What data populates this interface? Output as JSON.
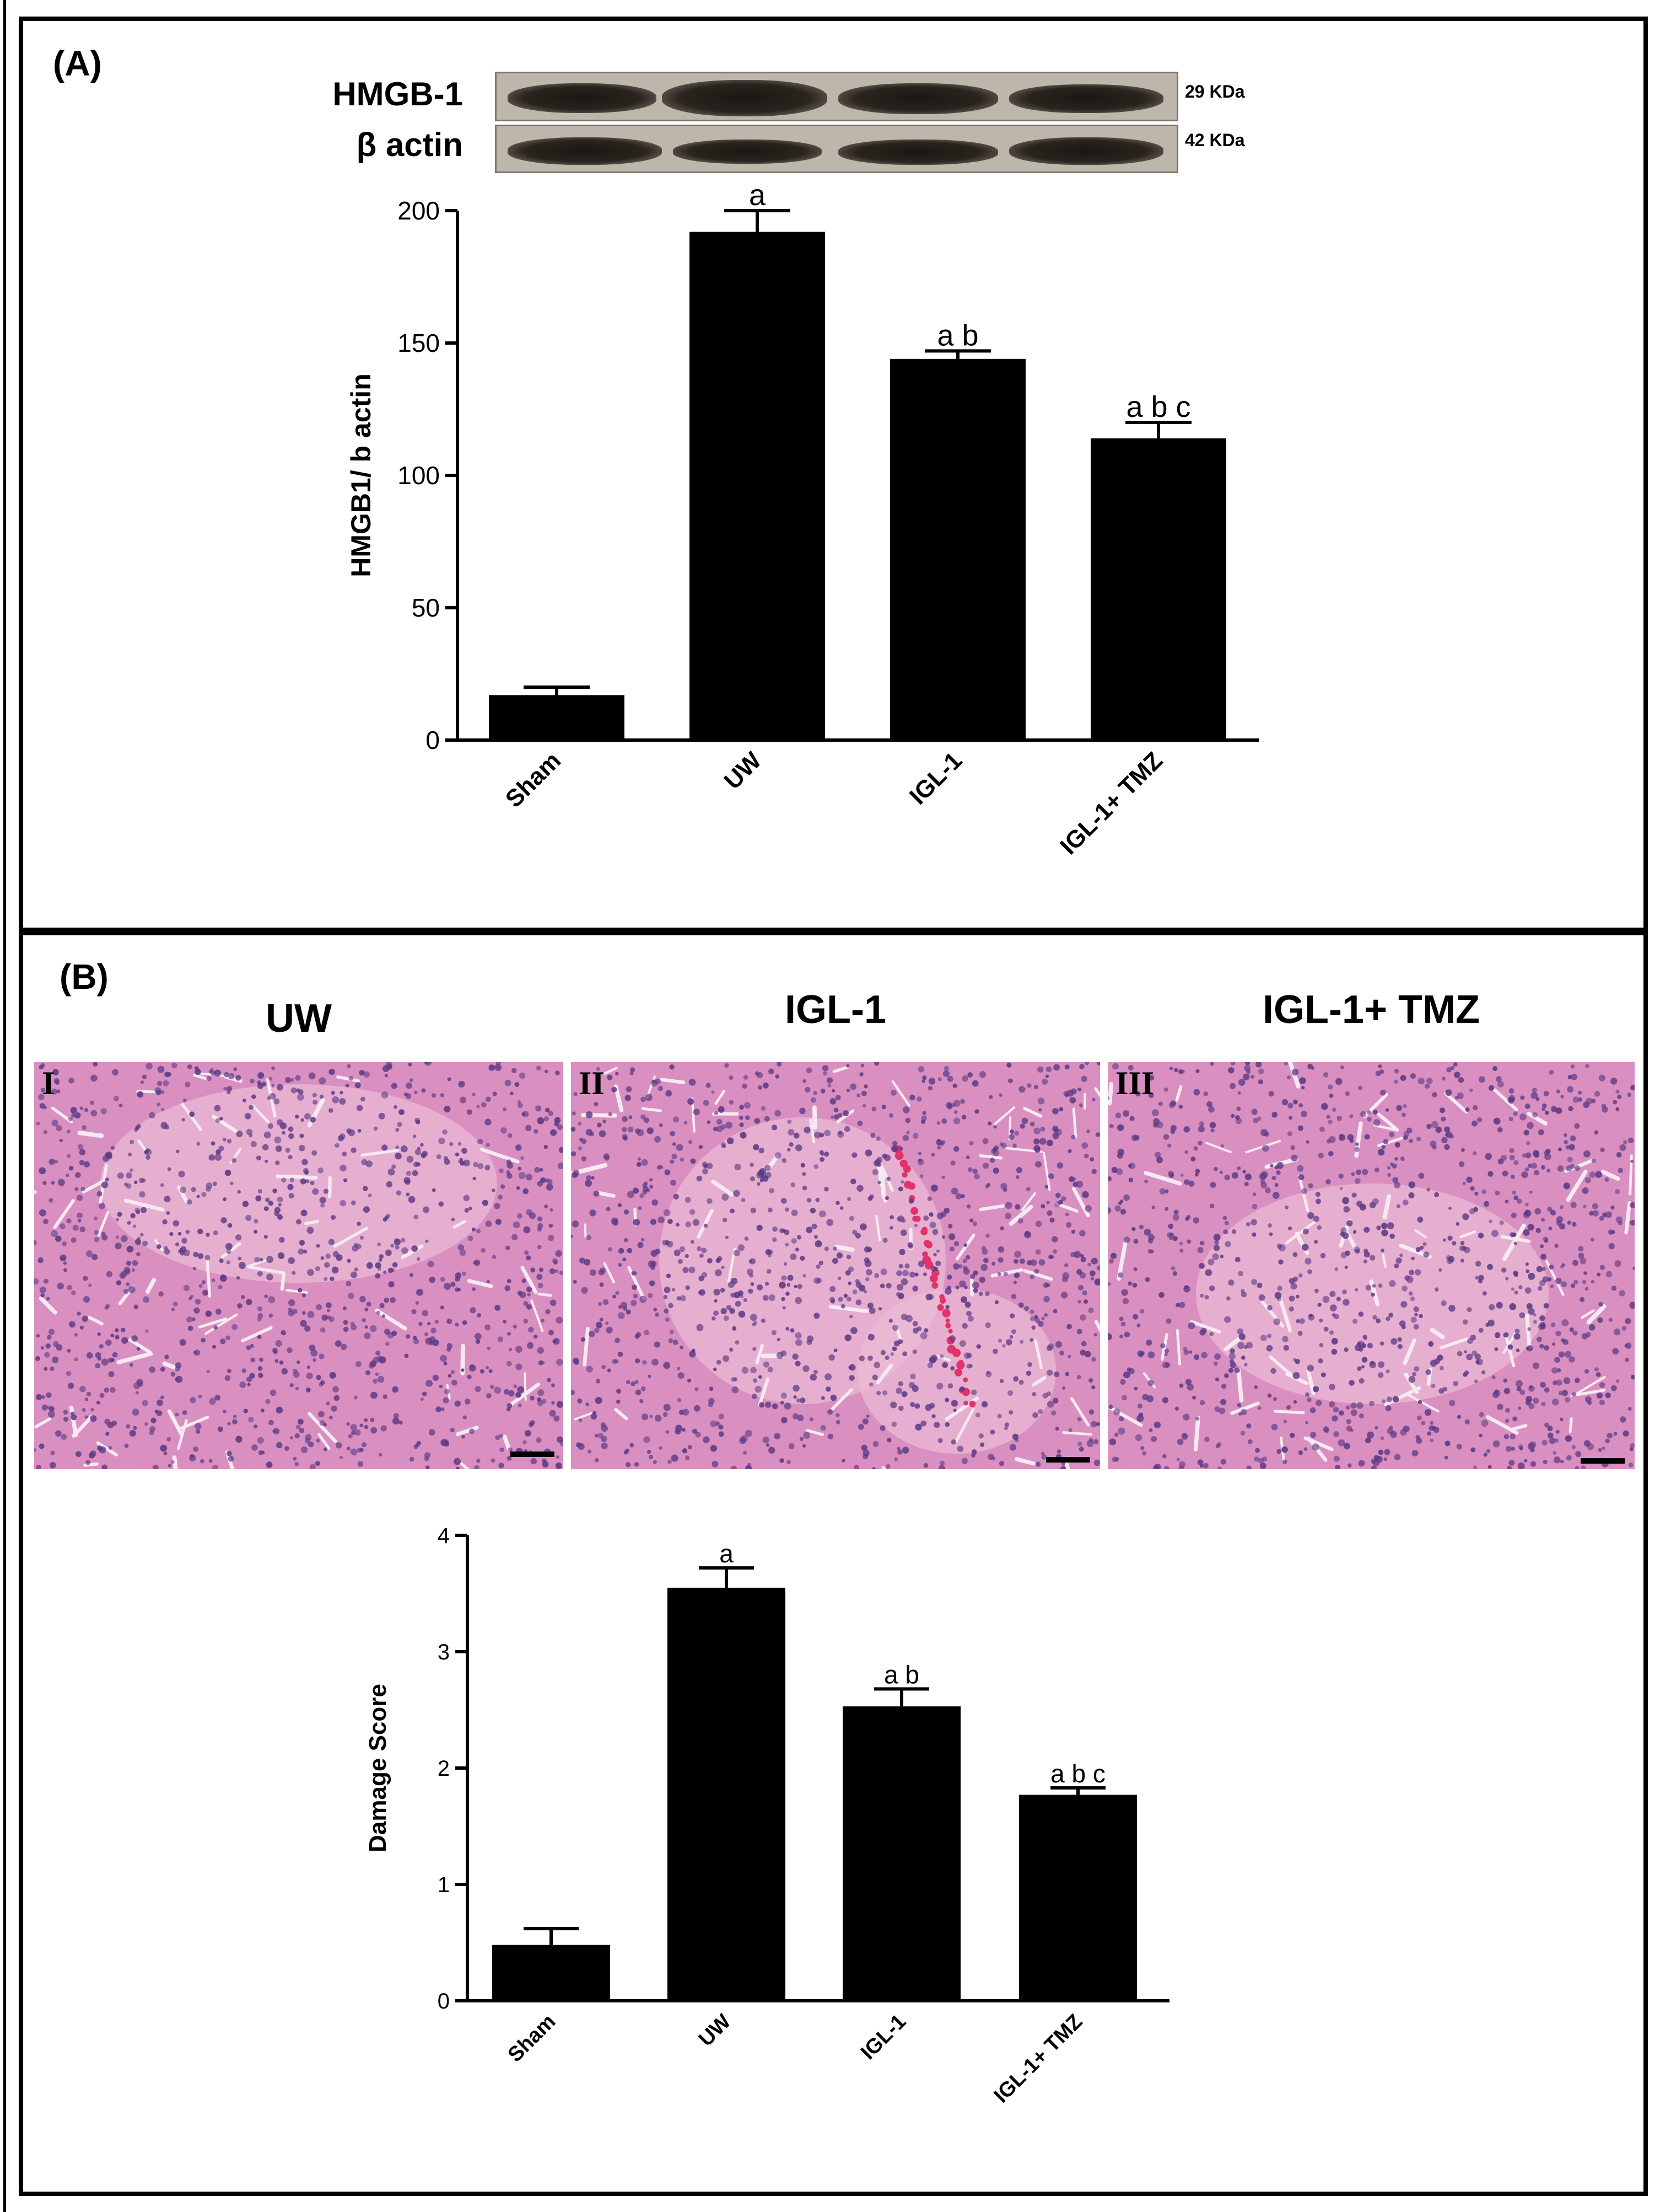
{
  "panels": {
    "A": {
      "label": "(A)",
      "blot": {
        "rows": [
          {
            "label": "HMGB-1",
            "kda": "29 KDa"
          },
          {
            "label": "β actin",
            "kda": "42 KDa"
          }
        ]
      }
    },
    "B": {
      "label": "(B)",
      "histology": [
        {
          "title": "UW",
          "numeral": "I"
        },
        {
          "title": "IGL-1",
          "numeral": "II"
        },
        {
          "title": "IGL-1+ TMZ",
          "numeral": "III"
        }
      ]
    }
  },
  "colors": {
    "bar": "#000000",
    "axis": "#000000",
    "stain_base": "#d98fbf",
    "stain_nuclei": "#5b3a86"
  },
  "chart_data": [
    {
      "type": "bar",
      "title": "",
      "xlabel": "",
      "ylabel": "HMGB1/ b actin",
      "categories": [
        "Sham",
        "UW",
        "IGL-1",
        "IGL-1+ TMZ"
      ],
      "values": [
        17,
        192,
        144,
        114
      ],
      "errors": [
        3,
        8,
        3,
        6
      ],
      "annotations": [
        "",
        "a",
        "a b",
        "a b c"
      ],
      "ylim": [
        0,
        200
      ],
      "yticks": [
        "0",
        "50",
        "100",
        "150",
        "200"
      ],
      "grid": false
    },
    {
      "type": "bar",
      "title": "",
      "xlabel": "",
      "ylabel": "Damage Score",
      "categories": [
        "Sham",
        "UW",
        "IGL-1",
        "IGL-1+ TMZ"
      ],
      "values": [
        0.48,
        3.55,
        2.53,
        1.77
      ],
      "errors": [
        0.14,
        0.17,
        0.15,
        0.06
      ],
      "annotations": [
        "",
        "a",
        "a b",
        "a b c"
      ],
      "ylim": [
        0,
        4
      ],
      "yticks": [
        "0",
        "1",
        "2",
        "3",
        "4"
      ],
      "grid": false
    }
  ]
}
